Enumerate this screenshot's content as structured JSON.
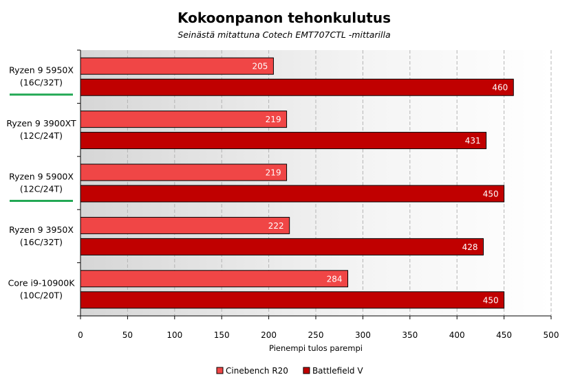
{
  "chart_data": {
    "type": "bar",
    "orientation": "horizontal",
    "title": "Kokoonpanon tehonkulutus",
    "subtitle": "Seinästä mitattuna Cotech EMT707CTL -mittarilla",
    "xlabel": "Pienempi tulos parempi",
    "xlim": [
      0,
      500
    ],
    "xticks": [
      0,
      50,
      100,
      150,
      200,
      250,
      300,
      350,
      400,
      450,
      500
    ],
    "grid": true,
    "legend_position": "bottom",
    "categories": [
      {
        "line1": "Ryzen 9 5950X",
        "line2": "(16C/32T)",
        "highlight": true
      },
      {
        "line1": "Ryzen 9 3900XT",
        "line2": "(12C/24T)",
        "highlight": false
      },
      {
        "line1": "Ryzen 9 5900X",
        "line2": "(12C/24T)",
        "highlight": true
      },
      {
        "line1": "Ryzen 9 3950X",
        "line2": "(16C/32T)",
        "highlight": false
      },
      {
        "line1": "Core i9-10900K",
        "line2": "(10C/20T)",
        "highlight": false
      }
    ],
    "series": [
      {
        "name": "Cinebench R20",
        "color": "#f04646",
        "values": [
          205,
          219,
          219,
          222,
          284
        ]
      },
      {
        "name": "Battlefield V",
        "color": "#c00000",
        "values": [
          460,
          431,
          450,
          428,
          450
        ]
      }
    ],
    "highlight_color": "#22a854"
  }
}
